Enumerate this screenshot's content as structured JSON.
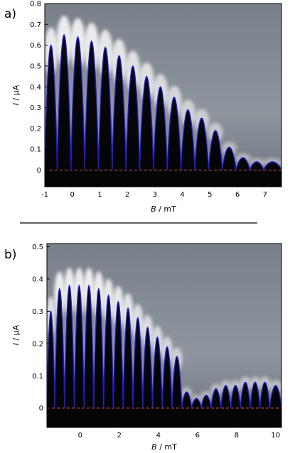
{
  "colors": {
    "fit_curve": "#1f1fd8",
    "zero_line": "#d9534f",
    "background": "#8e949c",
    "superconducting": "#000000",
    "peak": "#ffffff"
  },
  "divider": true,
  "chart_data": [
    {
      "panel_label": "a)",
      "type": "heatmap",
      "xlabel_var": "B",
      "xlabel_unit": " / mT",
      "ylabel_var": "I",
      "ylabel_unit": " / μA",
      "xlim": [
        -1,
        7.6
      ],
      "ylim": [
        -0.08,
        0.8
      ],
      "xticks": [
        -1,
        0,
        1,
        2,
        3,
        4,
        5,
        6,
        7
      ],
      "yticks": [
        0,
        0.1,
        0.2,
        0.3,
        0.4,
        0.5,
        0.6,
        0.7,
        0.8
      ],
      "xtick_labels": [
        "-1",
        "0",
        "1",
        "2",
        "3",
        "4",
        "5",
        "6",
        "7"
      ],
      "ytick_labels": [
        "0",
        "0.1",
        "0.2",
        "0.3",
        "0.4",
        "0.5",
        "0.6",
        "0.7",
        "0.8"
      ],
      "zero_line_y": 0,
      "critical_current": {
        "node_x": [
          -1.0,
          -0.55,
          -0.05,
          0.45,
          0.95,
          1.45,
          1.95,
          2.45,
          2.95,
          3.45,
          3.95,
          4.45,
          4.95,
          5.45,
          5.95,
          6.45,
          6.95,
          7.6
        ],
        "lobe_peaks": [
          0.6,
          0.65,
          0.64,
          0.62,
          0.59,
          0.55,
          0.5,
          0.45,
          0.4,
          0.35,
          0.29,
          0.25,
          0.19,
          0.11,
          0.06,
          0.04,
          0.04
        ]
      }
    },
    {
      "panel_label": "b)",
      "type": "heatmap",
      "xlabel_var": "B",
      "xlabel_unit": " / mT",
      "ylabel_var": "I",
      "ylabel_unit": " / μA",
      "xlim": [
        -1.7,
        10.3
      ],
      "ylim": [
        -0.06,
        0.51
      ],
      "xticks": [
        0,
        2,
        4,
        6,
        8,
        10
      ],
      "yticks": [
        0,
        0.1,
        0.2,
        0.3,
        0.4,
        0.5
      ],
      "xtick_labels": [
        "0",
        "2",
        "4",
        "6",
        "8",
        "10"
      ],
      "ytick_labels": [
        "0",
        "0.1",
        "0.2",
        "0.3",
        "0.4",
        "0.5"
      ],
      "zero_line_y": 0,
      "critical_current": {
        "node_x": [
          -1.7,
          -1.3,
          -0.8,
          -0.3,
          0.2,
          0.7,
          1.2,
          1.7,
          2.2,
          2.7,
          3.2,
          3.7,
          4.2,
          4.7,
          5.2,
          5.7,
          6.2,
          6.7,
          7.2,
          7.7,
          8.2,
          8.7,
          9.2,
          9.7,
          10.3
        ],
        "lobe_peaks": [
          0.3,
          0.37,
          0.38,
          0.38,
          0.38,
          0.37,
          0.35,
          0.33,
          0.31,
          0.28,
          0.25,
          0.22,
          0.19,
          0.16,
          0.05,
          0.03,
          0.04,
          0.06,
          0.07,
          0.07,
          0.08,
          0.08,
          0.08,
          0.07
        ]
      }
    }
  ]
}
